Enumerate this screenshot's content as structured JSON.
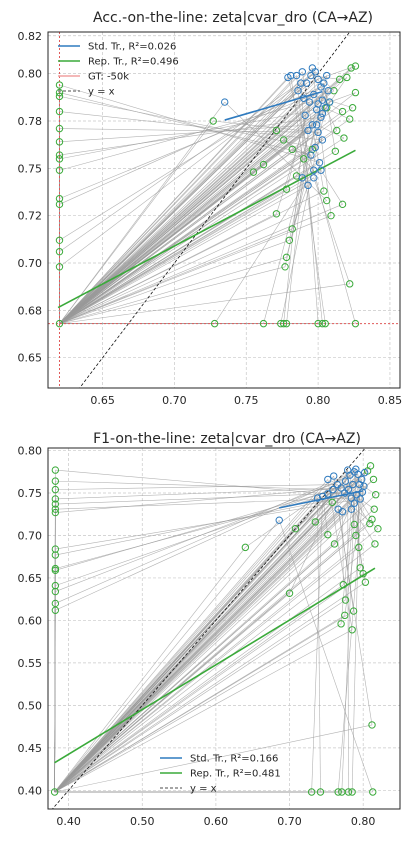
{
  "chart_data": [
    {
      "type": "scatter",
      "title": "Acc.-on-the-line: zeta|cvar_dro  (CA→AZ)",
      "xlabel": "",
      "ylabel": "",
      "xlim": [
        0.612,
        0.857
      ],
      "ylim": [
        0.634,
        0.822
      ],
      "xticks": [
        0.65,
        0.7,
        0.75,
        0.8,
        0.85
      ],
      "yticks": [
        0.65,
        0.675,
        0.7,
        0.725,
        0.75,
        0.775,
        0.8,
        0.82
      ],
      "xtick_labels": [
        "0.65",
        "0.70",
        "0.75",
        "0.80",
        "0.85"
      ],
      "ytick_labels": [
        "0.65",
        "0.68",
        "0.70",
        "0.72",
        "0.75",
        "0.78",
        "0.80",
        "0.82"
      ],
      "legend": "top-left",
      "grid": true,
      "series": [
        {
          "name": "Std. Tr., R²=0.026",
          "color": "#2f7bbf",
          "line": [
            [
              0.735,
              0.7755
            ],
            [
              0.803,
              0.7905
            ]
          ],
          "points": [
            [
              0.792,
              0.795
            ],
            [
              0.795,
              0.799
            ],
            [
              0.798,
              0.801
            ],
            [
              0.8,
              0.797
            ],
            [
              0.802,
              0.793
            ],
            [
              0.797,
              0.789
            ],
            [
              0.794,
              0.785
            ],
            [
              0.799,
              0.781
            ],
            [
              0.802,
              0.777
            ],
            [
              0.796,
              0.773
            ],
            [
              0.8,
              0.769
            ],
            [
              0.803,
              0.765
            ],
            [
              0.798,
              0.761
            ],
            [
              0.795,
              0.757
            ],
            [
              0.801,
              0.753
            ],
            [
              0.797,
              0.749
            ],
            [
              0.803,
              0.786
            ],
            [
              0.805,
              0.782
            ],
            [
              0.791,
              0.778
            ],
            [
              0.793,
              0.77
            ],
            [
              0.788,
              0.795
            ],
            [
              0.785,
              0.799
            ],
            [
              0.781,
              0.799
            ],
            [
              0.779,
              0.798
            ],
            [
              0.806,
              0.799
            ],
            [
              0.807,
              0.791
            ],
            [
              0.789,
              0.745
            ],
            [
              0.793,
              0.741
            ],
            [
              0.797,
              0.745
            ],
            [
              0.802,
              0.749
            ],
            [
              0.735,
              0.785
            ],
            [
              0.789,
              0.801
            ],
            [
              0.796,
              0.803
            ],
            [
              0.804,
              0.795
            ],
            [
              0.799,
              0.773
            ],
            [
              0.79,
              0.787
            ],
            [
              0.786,
              0.791
            ],
            [
              0.808,
              0.785
            ],
            [
              0.803,
              0.779
            ],
            [
              0.8,
              0.784
            ]
          ]
        },
        {
          "name": "Rep. Tr., R²=0.496",
          "color": "#3aaa3a",
          "line": [
            [
              0.619,
              0.6765
            ],
            [
              0.826,
              0.7595
            ]
          ],
          "points": [
            [
              0.62,
              0.668
            ],
            [
              0.62,
              0.698
            ],
            [
              0.62,
              0.706
            ],
            [
              0.62,
              0.712
            ],
            [
              0.62,
              0.731
            ],
            [
              0.62,
              0.734
            ],
            [
              0.62,
              0.749
            ],
            [
              0.62,
              0.755
            ],
            [
              0.62,
              0.757
            ],
            [
              0.62,
              0.764
            ],
            [
              0.62,
              0.771
            ],
            [
              0.62,
              0.78
            ],
            [
              0.62,
              0.788
            ],
            [
              0.62,
              0.79
            ],
            [
              0.62,
              0.794
            ],
            [
              0.728,
              0.668
            ],
            [
              0.762,
              0.668
            ],
            [
              0.774,
              0.668
            ],
            [
              0.776,
              0.668
            ],
            [
              0.778,
              0.668
            ],
            [
              0.8,
              0.668
            ],
            [
              0.803,
              0.668
            ],
            [
              0.805,
              0.668
            ],
            [
              0.826,
              0.668
            ],
            [
              0.777,
              0.698
            ],
            [
              0.778,
              0.703
            ],
            [
              0.78,
              0.712
            ],
            [
              0.782,
              0.718
            ],
            [
              0.822,
              0.689
            ],
            [
              0.817,
              0.731
            ],
            [
              0.806,
              0.733
            ],
            [
              0.804,
              0.738
            ],
            [
              0.809,
              0.725
            ],
            [
              0.812,
              0.759
            ],
            [
              0.818,
              0.766
            ],
            [
              0.822,
              0.776
            ],
            [
              0.824,
              0.782
            ],
            [
              0.826,
              0.79
            ],
            [
              0.82,
              0.798
            ],
            [
              0.823,
              0.803
            ],
            [
              0.826,
              0.804
            ],
            [
              0.815,
              0.797
            ],
            [
              0.811,
              0.791
            ],
            [
              0.808,
              0.785
            ],
            [
              0.806,
              0.782
            ],
            [
              0.771,
              0.726
            ],
            [
              0.778,
              0.739
            ],
            [
              0.785,
              0.746
            ],
            [
              0.762,
              0.752
            ],
            [
              0.755,
              0.748
            ],
            [
              0.727,
              0.775
            ],
            [
              0.79,
              0.755
            ],
            [
              0.796,
              0.76
            ],
            [
              0.782,
              0.76
            ],
            [
              0.776,
              0.765
            ],
            [
              0.771,
              0.77
            ],
            [
              0.817,
              0.78
            ],
            [
              0.813,
              0.77
            ]
          ]
        }
      ],
      "gt_lines": {
        "name": "GT: -50k",
        "color": "#e05a5a",
        "x": 0.62,
        "y": 0.668
      },
      "identity": {
        "name": "y = x"
      }
    },
    {
      "type": "scatter",
      "title": "F1-on-the-line: zeta|cvar_dro  (CA→AZ)",
      "xlabel": "",
      "ylabel": "",
      "xlim": [
        0.372,
        0.85
      ],
      "ylim": [
        0.378,
        0.803
      ],
      "xticks": [
        0.4,
        0.5,
        0.6,
        0.7,
        0.8
      ],
      "yticks": [
        0.4,
        0.45,
        0.5,
        0.55,
        0.6,
        0.65,
        0.7,
        0.75,
        0.8
      ],
      "xtick_labels": [
        "0.40",
        "0.50",
        "0.60",
        "0.70",
        "0.80"
      ],
      "ytick_labels": [
        "0.40",
        "0.45",
        "0.50",
        "0.55",
        "0.60",
        "0.65",
        "0.70",
        "0.75",
        "0.80"
      ],
      "legend": "lower-center",
      "grid": true,
      "series": [
        {
          "name": "Std. Tr., R²=0.166",
          "color": "#2f7bbf",
          "line": [
            [
              0.686,
              0.7325
            ],
            [
              0.8,
              0.7525
            ]
          ],
          "points": [
            [
              0.776,
              0.764
            ],
            [
              0.782,
              0.771
            ],
            [
              0.788,
              0.775
            ],
            [
              0.793,
              0.772
            ],
            [
              0.798,
              0.766
            ],
            [
              0.786,
              0.76
            ],
            [
              0.78,
              0.754
            ],
            [
              0.791,
              0.748
            ],
            [
              0.796,
              0.743
            ],
            [
              0.801,
              0.758
            ],
            [
              0.784,
              0.744
            ],
            [
              0.775,
              0.75
            ],
            [
              0.77,
              0.756
            ],
            [
              0.765,
              0.76
            ],
            [
              0.759,
              0.754
            ],
            [
              0.752,
              0.749
            ],
            [
              0.745,
              0.746
            ],
            [
              0.738,
              0.744
            ],
            [
              0.802,
              0.774
            ],
            [
              0.79,
              0.778
            ],
            [
              0.779,
              0.777
            ],
            [
              0.795,
              0.76
            ],
            [
              0.686,
              0.718
            ],
            [
              0.766,
              0.731
            ],
            [
              0.772,
              0.728
            ],
            [
              0.788,
              0.738
            ],
            [
              0.784,
              0.731
            ],
            [
              0.799,
              0.751
            ],
            [
              0.76,
              0.77
            ],
            [
              0.752,
              0.766
            ]
          ]
        },
        {
          "name": "Rep. Tr., R²=0.481",
          "color": "#3aaa3a",
          "line": [
            [
              0.381,
              0.4325
            ],
            [
              0.816,
              0.6615
            ]
          ],
          "points": [
            [
              0.381,
              0.398
            ],
            [
              0.382,
              0.612
            ],
            [
              0.382,
              0.62
            ],
            [
              0.382,
              0.634
            ],
            [
              0.382,
              0.641
            ],
            [
              0.382,
              0.659
            ],
            [
              0.382,
              0.661
            ],
            [
              0.382,
              0.677
            ],
            [
              0.382,
              0.684
            ],
            [
              0.382,
              0.727
            ],
            [
              0.382,
              0.731
            ],
            [
              0.382,
              0.737
            ],
            [
              0.382,
              0.743
            ],
            [
              0.382,
              0.754
            ],
            [
              0.382,
              0.764
            ],
            [
              0.382,
              0.777
            ],
            [
              0.73,
              0.398
            ],
            [
              0.742,
              0.398
            ],
            [
              0.766,
              0.398
            ],
            [
              0.771,
              0.398
            ],
            [
              0.78,
              0.398
            ],
            [
              0.785,
              0.398
            ],
            [
              0.813,
              0.398
            ],
            [
              0.812,
              0.477
            ],
            [
              0.773,
              0.642
            ],
            [
              0.776,
              0.624
            ],
            [
              0.77,
              0.596
            ],
            [
              0.775,
              0.606
            ],
            [
              0.787,
              0.611
            ],
            [
              0.785,
              0.589
            ],
            [
              0.803,
              0.645
            ],
            [
              0.8,
              0.655
            ],
            [
              0.796,
              0.662
            ],
            [
              0.794,
              0.686
            ],
            [
              0.79,
              0.7
            ],
            [
              0.788,
              0.713
            ],
            [
              0.809,
              0.714
            ],
            [
              0.812,
              0.719
            ],
            [
              0.815,
              0.731
            ],
            [
              0.817,
              0.748
            ],
            [
              0.814,
              0.766
            ],
            [
              0.81,
              0.782
            ],
            [
              0.806,
              0.776
            ],
            [
              0.816,
              0.69
            ],
            [
              0.82,
              0.708
            ],
            [
              0.735,
              0.716
            ],
            [
              0.752,
              0.701
            ],
            [
              0.758,
              0.739
            ],
            [
              0.708,
              0.708
            ],
            [
              0.64,
              0.686
            ],
            [
              0.7,
              0.632
            ],
            [
              0.761,
              0.69
            ]
          ]
        }
      ],
      "identity": {
        "name": "y = x"
      }
    }
  ]
}
